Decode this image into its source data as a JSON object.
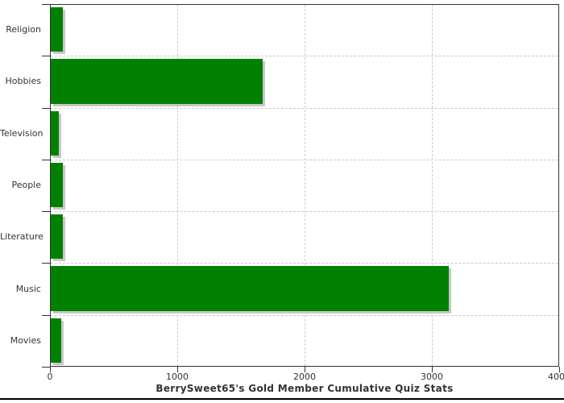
{
  "chart_data": {
    "type": "bar",
    "orientation": "horizontal",
    "title": "BerrySweet65's Gold Member Cumulative Quiz Stats",
    "categories": [
      "Religion",
      "Hobbies",
      "Television",
      "People",
      "Literature",
      "Music",
      "Movies"
    ],
    "values": [
      100,
      1670,
      70,
      100,
      100,
      3130,
      90
    ],
    "xlim": [
      0,
      4000
    ],
    "x_ticks": [
      "0",
      "1000",
      "2000",
      "3000",
      "4000"
    ],
    "x_tick_values": [
      0,
      1000,
      2000,
      3000,
      4000
    ],
    "grid": "dashed",
    "legend": "none",
    "colors": {
      "bar": "#008000",
      "bar_shadow": "#c8c8c8",
      "grid": "#cccccc",
      "axis": "#333333",
      "text": "#333333",
      "title": "#333333",
      "background": "#ffffff",
      "bottom_rule": "#000000"
    }
  }
}
